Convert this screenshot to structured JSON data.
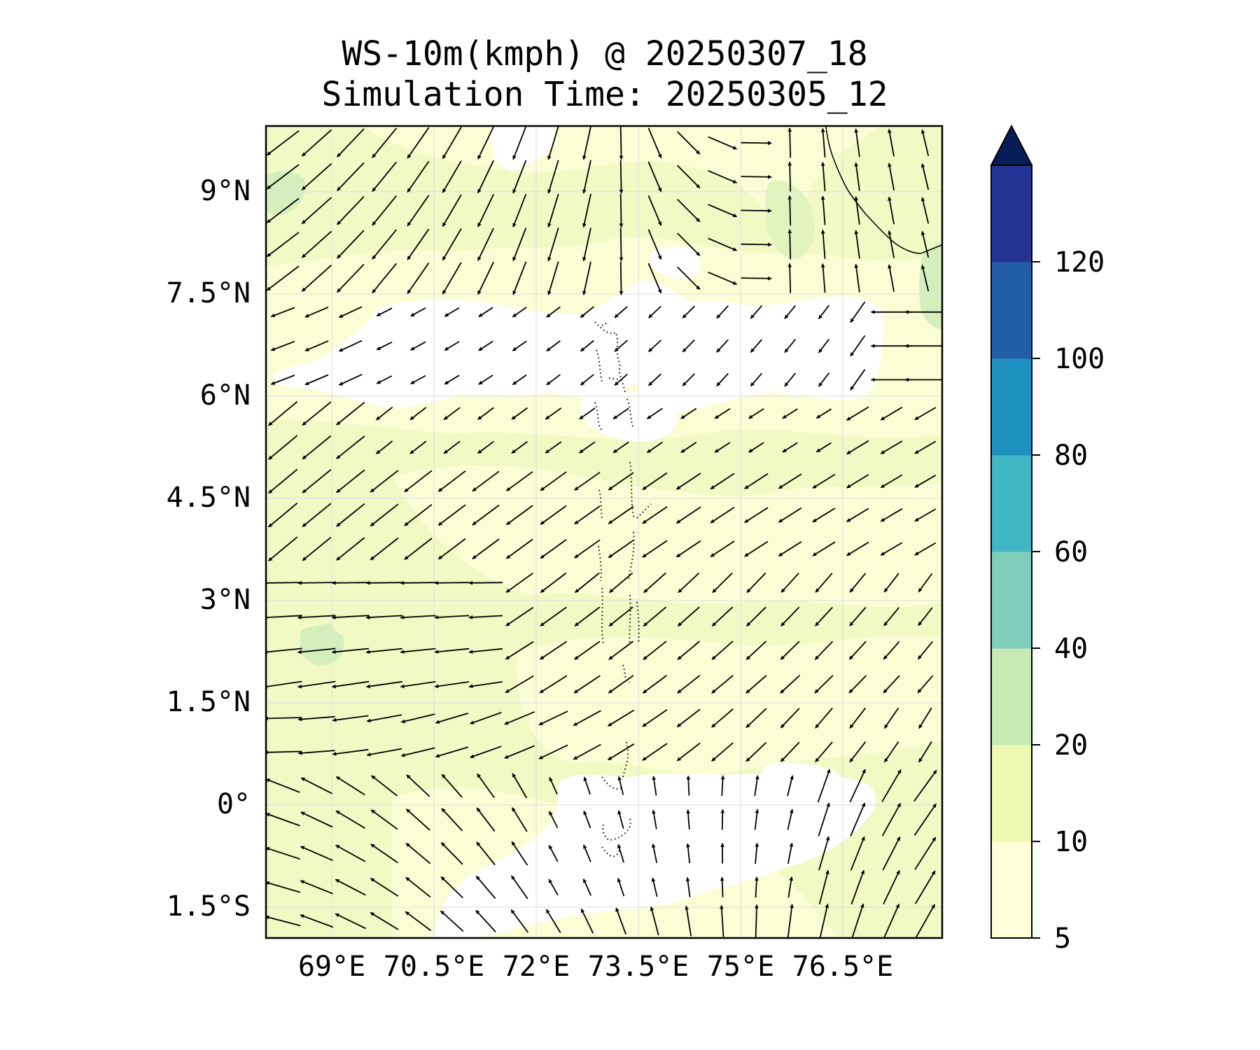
{
  "title": {
    "line1": "WS-10m(kmph) @ 20250307_18",
    "line2": "Simulation Time: 20250305_12"
  },
  "chart_data": {
    "type": "heatmap",
    "variable": "WS-10m(kmph)",
    "xlim": [
      67.8,
      77.7
    ],
    "ylim": [
      -1.95,
      9.95
    ],
    "x_ticks": [
      {
        "value": 69,
        "label": "69°E"
      },
      {
        "value": 70.5,
        "label": "70.5°E"
      },
      {
        "value": 72,
        "label": "72°E"
      },
      {
        "value": 73.5,
        "label": "73.5°E"
      },
      {
        "value": 75,
        "label": "75°E"
      },
      {
        "value": 76.5,
        "label": "76.5°E"
      }
    ],
    "y_ticks": [
      {
        "value": 9,
        "label": "9°N"
      },
      {
        "value": 7.5,
        "label": "7.5°N"
      },
      {
        "value": 6,
        "label": "6°N"
      },
      {
        "value": 4.5,
        "label": "4.5°N"
      },
      {
        "value": 3,
        "label": "3°N"
      },
      {
        "value": 1.5,
        "label": "1.5°N"
      },
      {
        "value": 0,
        "label": "0°"
      },
      {
        "value": -1.5,
        "label": "1.5°S"
      }
    ],
    "grid": true,
    "colorbar": {
      "levels": [
        5,
        10,
        20,
        40,
        60,
        80,
        100,
        120
      ],
      "labels": [
        "5",
        "10",
        "20",
        "40",
        "60",
        "80",
        "100",
        "120"
      ],
      "colors": [
        "#ffffd9",
        "#edf8b1",
        "#c7e9b4",
        "#7fcdbb",
        "#41b6c4",
        "#1d91c0",
        "#225ea8",
        "#253494"
      ],
      "extend_color": "#081d58",
      "extend": "max"
    },
    "field_colors": {
      "below_min": "#ffffff",
      "low": "#fbfed4",
      "mid": "#eef8be",
      "high": "#d4eebc"
    },
    "wind_vectors": "10 m wind arrows over the domain: northeasterly flow in the north-west, easterly flow near 1.5°N, north-easterly over most of the central area, north-westerly in the south-east"
  }
}
